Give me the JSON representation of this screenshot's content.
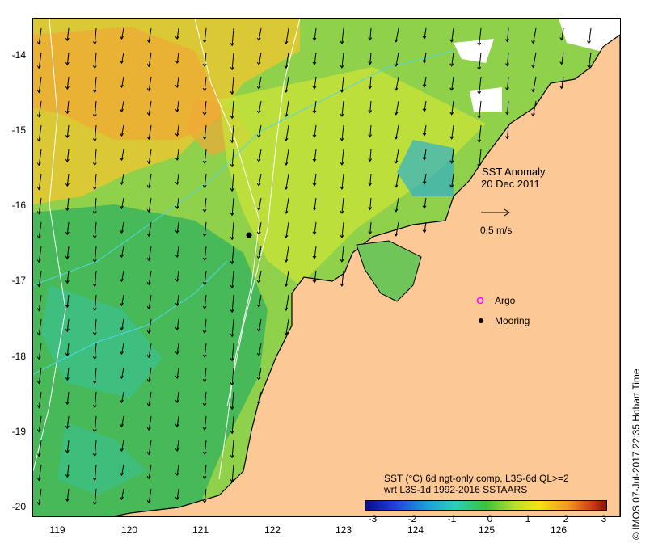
{
  "map": {
    "title_line1": "SST Anomaly",
    "title_line2": "20 Dec 2011",
    "scale_label": "0.5 m/s",
    "legend": {
      "argo_label": "Argo",
      "mooring_label": "Mooring",
      "argo_color": "#ff00ff",
      "mooring_color": "#000000"
    },
    "caption_line1": "SST (°C) 6d ngt-only comp, L3S-6d QL>=2",
    "caption_line2": "wrt L3S-1d 1992-2016 SSTAARS",
    "credit": "© IMOS 07-Jul-2017 22:35 Hobart Time",
    "land_color": "#fbc896",
    "x_ticks": [
      "119",
      "120",
      "121",
      "122",
      "123",
      "124",
      "125",
      "126"
    ],
    "y_ticks": [
      "-14",
      "-15",
      "-16",
      "-17",
      "-18",
      "-19",
      "-20"
    ],
    "colorbar_ticks": [
      "-3",
      "-2",
      "-1",
      "0",
      "1",
      "2",
      "3"
    ],
    "colorbar_range": [
      -3,
      3
    ]
  }
}
